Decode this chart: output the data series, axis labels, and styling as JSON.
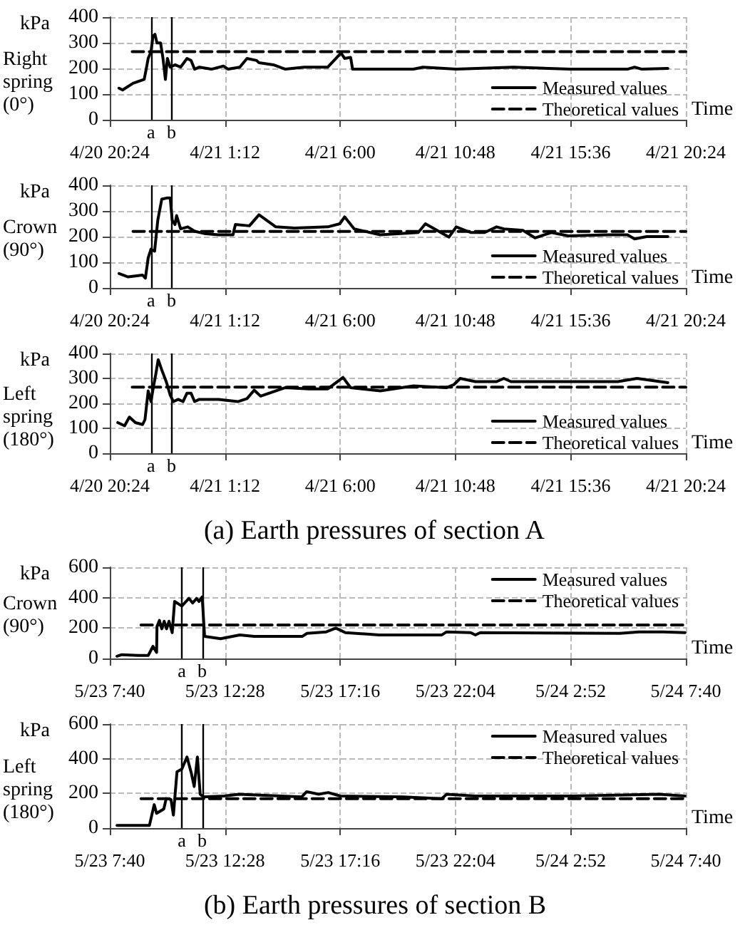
{
  "chart_data": [
    {
      "type": "line",
      "title": "Right spring (0°)",
      "ylabel": "kPa",
      "xlabel": "Time",
      "marker": "none",
      "grid": true,
      "legend": "bottom right",
      "xlim": [
        "--04-20T20:24",
        "--04-21T20:24"
      ],
      "xticks": [
        {
          "value": "--04-20T20:24",
          "label": "4/20 20:24"
        },
        {
          "value": "--04-21T01:12",
          "label": "4/21 1:12"
        },
        {
          "value": "--04-21T06:00",
          "label": "4/21 6:00"
        },
        {
          "value": "--04-21T10:48",
          "label": "4/21 10:48"
        },
        {
          "value": "--04-21T15:36",
          "label": "4/21 15:36"
        },
        {
          "value": "--04-21T20:24",
          "label": "4/21 20:24"
        }
      ],
      "ylim": [
        0,
        400
      ],
      "yticks": [
        0,
        100,
        200,
        300,
        400
      ],
      "ref_lines": [
        {
          "axis": "x",
          "value": "--04-20T22:07",
          "label": "a",
          "color": "#000000"
        },
        {
          "axis": "x",
          "value": "--04-20T22:58",
          "label": "b",
          "color": "#000000"
        }
      ],
      "series": [
        {
          "name": "Measured values",
          "color": "#000000",
          "line_style": "solid",
          "x": [
            "--04-20T20:47",
            "--04-20T20:56",
            "--04-20T21:22",
            "--04-20T21:50",
            "--04-20T21:55",
            "--04-20T22:00",
            "--04-20T22:07",
            "--04-20T22:12",
            "--04-20T22:17",
            "--04-20T22:22",
            "--04-20T22:31",
            "--04-20T22:37",
            "--04-20T22:43",
            "--04-20T22:48",
            "--04-20T22:55",
            "--04-20T23:07",
            "--04-20T23:21",
            "--04-20T23:37",
            "--04-20T23:47",
            "--04-20T23:56",
            "--04-21T00:08",
            "--04-21T00:38",
            "--04-21T01:08",
            "--04-21T01:20",
            "--04-21T01:49",
            "--04-21T02:07",
            "--04-21T02:31",
            "--04-21T02:37",
            "--04-21T03:13",
            "--04-21T03:43",
            "--04-21T04:30",
            "--04-21T05:29",
            "--04-21T06:02",
            "--04-21T06:11",
            "--04-21T06:26",
            "--04-21T06:31",
            "--04-21T09:03",
            "--04-21T09:27",
            "--04-21T10:50",
            "--04-21T13:13",
            "--04-21T15:35",
            "--04-21T17:58",
            "--04-21T18:16",
            "--04-21T18:34",
            "--04-21T19:39"
          ],
          "values": [
            123,
            116,
            142,
            157,
            197,
            239,
            265,
            325,
            333,
            299,
            299,
            239,
            157,
            239,
            205,
            214,
            205,
            239,
            231,
            197,
            205,
            197,
            209,
            197,
            205,
            239,
            231,
            222,
            214,
            197,
            205,
            205,
            260,
            239,
            243,
            197,
            197,
            205,
            197,
            205,
            197,
            197,
            205,
            197,
            200
          ]
        },
        {
          "name": "Theoretical values",
          "color": "#000000",
          "line_style": "dashed",
          "x": [
            "--04-20T21:20",
            "--04-21T20:24"
          ],
          "values": [
            265,
            265
          ]
        }
      ]
    },
    {
      "type": "line",
      "title": "Crown (90°)",
      "ylabel": "kPa",
      "xlabel": "Time",
      "marker": "none",
      "grid": true,
      "legend": "bottom right",
      "xlim": [
        "--04-20T20:24",
        "--04-21T20:24"
      ],
      "xticks": [
        {
          "value": "--04-20T20:24",
          "label": "4/20 20:24"
        },
        {
          "value": "--04-21T01:12",
          "label": "4/21 1:12"
        },
        {
          "value": "--04-21T06:00",
          "label": "4/21 6:00"
        },
        {
          "value": "--04-21T10:48",
          "label": "4/21 10:48"
        },
        {
          "value": "--04-21T15:36",
          "label": "4/21 15:36"
        },
        {
          "value": "--04-21T20:24",
          "label": "4/21 20:24"
        }
      ],
      "ylim": [
        0,
        400
      ],
      "yticks": [
        0,
        100,
        200,
        300,
        400
      ],
      "ref_lines": [
        {
          "axis": "x",
          "value": "--04-20T22:07",
          "label": "a",
          "color": "#000000"
        },
        {
          "axis": "x",
          "value": "--04-20T22:58",
          "label": "b",
          "color": "#000000"
        }
      ],
      "series": [
        {
          "name": "Measured values",
          "color": "#000000",
          "line_style": "solid",
          "x": [
            "--04-20T20:47",
            "--04-20T21:10",
            "--04-20T21:46",
            "--04-20T21:53",
            "--04-20T22:00",
            "--04-20T22:07",
            "--04-20T22:16",
            "--04-20T22:24",
            "--04-20T22:34",
            "--04-20T22:48",
            "--04-20T22:55",
            "--04-20T23:00",
            "--04-20T23:07",
            "--04-20T23:11",
            "--04-20T23:21",
            "--04-20T23:39",
            "--04-20T23:56",
            "--04-21T00:20",
            "--04-21T00:56",
            "--04-21T01:32",
            "--04-21T01:38",
            "--04-21T02:13",
            "--04-21T02:37",
            "--04-21T03:19",
            "--04-21T04:06",
            "--04-21T05:29",
            "--04-21T05:59",
            "--04-21T06:11",
            "--04-21T06:35",
            "--04-21T07:40",
            "--04-21T09:15",
            "--04-21T09:33",
            "--04-21T10:32",
            "--04-21T10:50",
            "--04-21T11:26",
            "--04-21T12:01",
            "--04-21T12:31",
            "--04-21T12:49",
            "--04-21T13:37",
            "--04-21T14:07",
            "--04-21T14:48",
            "--04-21T15:30",
            "--04-21T17:10",
            "--04-21T17:58",
            "--04-21T18:16",
            "--04-21T18:46",
            "--04-21T19:39"
          ],
          "values": [
            56,
            43,
            50,
            38,
            117,
            151,
            143,
            264,
            346,
            351,
            351,
            264,
            247,
            282,
            230,
            238,
            221,
            212,
            207,
            207,
            247,
            242,
            285,
            238,
            233,
            238,
            250,
            277,
            230,
            207,
            216,
            250,
            198,
            238,
            216,
            216,
            238,
            230,
            224,
            195,
            216,
            203,
            207,
            207,
            191,
            200,
            200
          ]
        },
        {
          "name": "Theoretical values",
          "color": "#000000",
          "line_style": "dashed",
          "x": [
            "--04-20T21:22",
            "--04-21T20:24"
          ],
          "values": [
            220,
            220
          ]
        }
      ]
    },
    {
      "type": "line",
      "title": "Left spring (180°)",
      "ylabel": "kPa",
      "xlabel": "Time",
      "marker": "none",
      "grid": true,
      "legend": "bottom right",
      "xlim": [
        "--04-20T20:24",
        "--04-21T20:24"
      ],
      "xticks": [
        {
          "value": "--04-20T20:24",
          "label": "4/20 20:24"
        },
        {
          "value": "--04-21T01:12",
          "label": "4/21 1:12"
        },
        {
          "value": "--04-21T06:00",
          "label": "4/21 6:00"
        },
        {
          "value": "--04-21T10:48",
          "label": "4/21 10:48"
        },
        {
          "value": "--04-21T15:36",
          "label": "4/21 15:36"
        },
        {
          "value": "--04-21T20:24",
          "label": "4/21 20:24"
        }
      ],
      "ylim": [
        0,
        400
      ],
      "yticks": [
        0,
        100,
        200,
        300,
        400
      ],
      "ref_lines": [
        {
          "axis": "x",
          "value": "--04-20T22:07",
          "label": "a",
          "color": "#000000"
        },
        {
          "axis": "x",
          "value": "--04-20T22:58",
          "label": "b",
          "color": "#000000"
        }
      ],
      "annotations": [
        "(a) Earth pressures of section A"
      ],
      "series": [
        {
          "name": "Measured values",
          "color": "#000000",
          "line_style": "solid",
          "x": [
            "--04-20T20:44",
            "--04-20T21:01",
            "--04-20T21:13",
            "--04-20T21:28",
            "--04-20T21:46",
            "--04-20T21:52",
            "--04-20T22:00",
            "--04-20T22:07",
            "--04-20T22:13",
            "--04-20T22:19",
            "--04-20T22:25",
            "--04-20T22:34",
            "--04-20T22:46",
            "--04-20T22:55",
            "--04-20T23:03",
            "--04-20T23:15",
            "--04-20T23:27",
            "--04-20T23:37",
            "--04-20T23:47",
            "--04-20T23:56",
            "--04-21T00:08",
            "--04-21T00:56",
            "--04-21T01:44",
            "--04-21T02:07",
            "--04-21T02:25",
            "--04-21T02:41",
            "--04-21T03:43",
            "--04-21T04:42",
            "--04-21T05:29",
            "--04-21T06:07",
            "--04-21T06:26",
            "--04-21T07:40",
            "--04-21T09:03",
            "--04-21T10:26",
            "--04-21T10:44",
            "--04-21T11:00",
            "--04-21T11:38",
            "--04-21T12:31",
            "--04-21T12:49",
            "--04-21T13:07",
            "--04-21T17:34",
            "--04-21T18:22",
            "--04-21T19:39"
          ],
          "values": [
            123,
            110,
            145,
            123,
            115,
            135,
            250,
            207,
            266,
            317,
            375,
            334,
            283,
            233,
            207,
            216,
            207,
            241,
            241,
            207,
            216,
            216,
            207,
            219,
            253,
            229,
            263,
            258,
            258,
            304,
            263,
            250,
            270,
            263,
            275,
            300,
            287,
            287,
            300,
            287,
            287,
            300,
            283
          ]
        },
        {
          "name": "Theoretical values",
          "color": "#000000",
          "line_style": "dashed",
          "x": [
            "--04-20T21:20",
            "--04-21T20:24"
          ],
          "values": [
            265,
            265
          ]
        }
      ]
    },
    {
      "type": "line",
      "title": "Crown (90°)",
      "ylabel": "kPa",
      "xlabel": "Time",
      "marker": "none",
      "grid": true,
      "legend": "top right",
      "xlim": [
        "--05-23T07:40",
        "--05-24T07:40"
      ],
      "xticks": [
        {
          "value": "--05-23T07:40",
          "label": "5/23 7:40"
        },
        {
          "value": "--05-23T12:28",
          "label": "5/23 12:28"
        },
        {
          "value": "--05-23T17:16",
          "label": "5/23 17:16"
        },
        {
          "value": "--05-23T22:04",
          "label": "5/23 22:04"
        },
        {
          "value": "--05-24T02:52",
          "label": "5/24 2:52"
        },
        {
          "value": "--05-24T07:40",
          "label": "5/24 7:40"
        }
      ],
      "ylim": [
        0,
        600
      ],
      "yticks": [
        0,
        200,
        400,
        600
      ],
      "ref_lines": [
        {
          "axis": "x",
          "value": "--05-23T10:40",
          "label": "a",
          "color": "#000000"
        },
        {
          "axis": "x",
          "value": "--05-23T11:31",
          "label": "b",
          "color": "#000000"
        }
      ],
      "series": [
        {
          "name": "Measured values",
          "color": "#000000",
          "line_style": "solid",
          "x": [
            "--05-23T07:58",
            "--05-23T08:10",
            "--05-23T08:52",
            "--05-23T09:16",
            "--05-23T09:28",
            "--05-23T09:37",
            "--05-23T09:38",
            "--05-23T09:44",
            "--05-23T09:50",
            "--05-23T09:56",
            "--05-23T10:02",
            "--05-23T10:08",
            "--05-23T10:16",
            "--05-23T10:22",
            "--05-23T10:40",
            "--05-23T10:58",
            "--05-23T11:07",
            "--05-23T11:17",
            "--05-23T11:23",
            "--05-23T11:31",
            "--05-23T11:37",
            "--05-23T12:17",
            "--05-23T13:05",
            "--05-23T13:41",
            "--05-23T15:41",
            "--05-23T15:53",
            "--05-23T16:41",
            "--05-23T17:05",
            "--05-23T17:29",
            "--05-23T18:53",
            "--05-23T21:30",
            "--05-23T21:42",
            "--05-23T22:42",
            "--05-23T22:54",
            "--05-23T23:06",
            "--05-24T04:55",
            "--05-24T05:43",
            "--05-24T06:44",
            "--05-24T07:38"
          ],
          "values": [
            15,
            25,
            20,
            20,
            80,
            40,
            210,
            250,
            195,
            245,
            195,
            245,
            170,
            375,
            345,
            395,
            365,
            395,
            375,
            405,
            145,
            130,
            155,
            145,
            145,
            165,
            175,
            200,
            170,
            155,
            155,
            175,
            170,
            155,
            170,
            165,
            175,
            175,
            170
          ]
        },
        {
          "name": "Theoretical values",
          "color": "#000000",
          "line_style": "dashed",
          "x": [
            "--05-23T08:58",
            "--05-24T07:40"
          ],
          "values": [
            220,
            220
          ]
        }
      ]
    },
    {
      "type": "line",
      "title": "Left spring (180°)",
      "ylabel": "kPa",
      "xlabel": "Time",
      "marker": "none",
      "grid": true,
      "legend": "top right",
      "xlim": [
        "--05-23T07:40",
        "--05-24T07:40"
      ],
      "xticks": [
        {
          "value": "--05-23T07:40",
          "label": "5/23 7:40"
        },
        {
          "value": "--05-23T12:28",
          "label": "5/23 12:28"
        },
        {
          "value": "--05-23T17:16",
          "label": "5/23 17:16"
        },
        {
          "value": "--05-23T22:04",
          "label": "5/23 22:04"
        },
        {
          "value": "--05-24T02:52",
          "label": "5/24 2:52"
        },
        {
          "value": "--05-24T07:40",
          "label": "5/24 7:40"
        }
      ],
      "ylim": [
        0,
        600
      ],
      "yticks": [
        0,
        200,
        400,
        600
      ],
      "ref_lines": [
        {
          "axis": "x",
          "value": "--05-23T10:40",
          "label": "a",
          "color": "#000000"
        },
        {
          "axis": "x",
          "value": "--05-23T11:31",
          "label": "b",
          "color": "#000000"
        }
      ],
      "annotations": [
        "(b) Earth pressures of section B"
      ],
      "series": [
        {
          "name": "Measured values",
          "color": "#000000",
          "line_style": "solid",
          "x": [
            "--05-23T07:58",
            "--05-23T09:19",
            "--05-23T09:31",
            "--05-23T09:37",
            "--05-23T09:55",
            "--05-23T10:01",
            "--05-23T10:13",
            "--05-23T10:19",
            "--05-23T10:28",
            "--05-23T10:40",
            "--05-23T10:53",
            "--05-23T11:04",
            "--05-23T11:11",
            "--05-23T11:19",
            "--05-23T11:26",
            "--05-23T11:34",
            "--05-23T12:26",
            "--05-23T13:03",
            "--05-23T15:40",
            "--05-23T15:52",
            "--05-23T16:22",
            "--05-23T16:46",
            "--05-23T17:16",
            "--05-23T19:53",
            "--05-23T21:30",
            "--05-23T21:42",
            "--05-23T22:54",
            "--05-24T02:56",
            "--05-24T06:33",
            "--05-24T07:38"
          ],
          "values": [
            15,
            15,
            135,
            85,
            110,
            170,
            165,
            75,
            325,
            340,
            410,
            315,
            240,
            410,
            195,
            180,
            185,
            195,
            180,
            210,
            195,
            205,
            185,
            180,
            170,
            195,
            185,
            185,
            195,
            185
          ]
        },
        {
          "name": "Theoretical values",
          "color": "#000000",
          "line_style": "dashed",
          "x": [
            "--05-23T08:58",
            "--05-24T07:40"
          ],
          "values": [
            170,
            170
          ]
        }
      ]
    }
  ]
}
